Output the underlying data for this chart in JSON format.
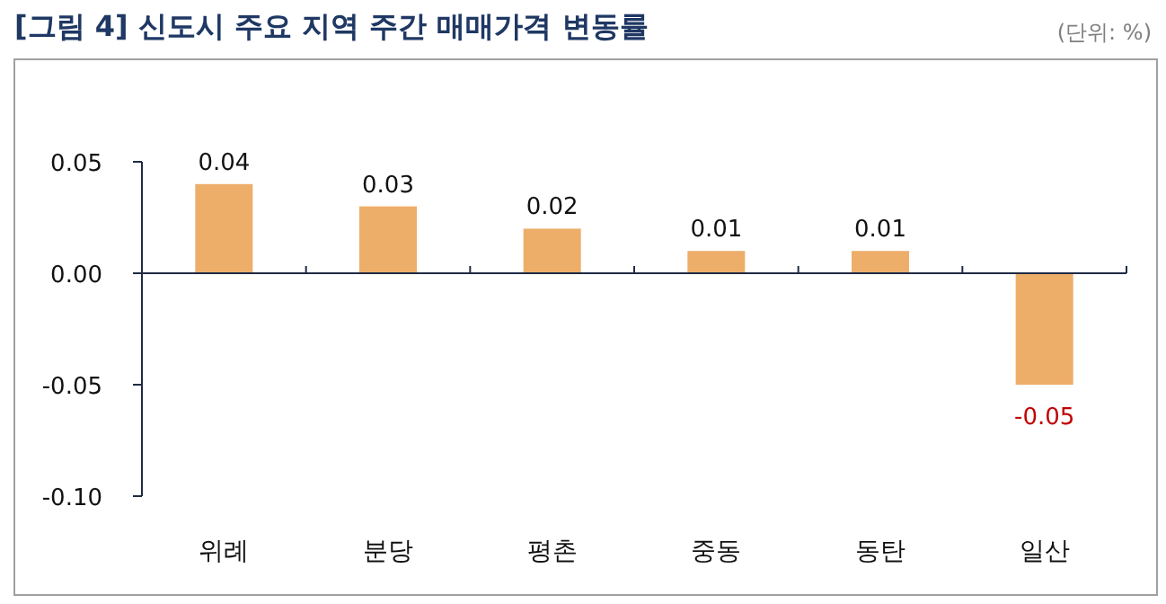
{
  "chart_data": {
    "type": "bar",
    "title": "[그림 4] 신도시 주요 지역 주간 매매가격 변동률",
    "annotations": [
      "(단위: %)"
    ],
    "categories": [
      "위례",
      "분당",
      "평촌",
      "중동",
      "동탄",
      "일산"
    ],
    "values": [
      0.04,
      0.03,
      0.02,
      0.01,
      0.01,
      -0.05
    ],
    "color": "#edae6a",
    "ylim": [
      -0.1,
      0.05
    ],
    "yticks": [
      0.05,
      {
        "value": 0,
        "label": "0.00"
      },
      -0.05,
      {
        "value": -0.1,
        "label": "-0.10"
      }
    ],
    "data_labels": true
  }
}
